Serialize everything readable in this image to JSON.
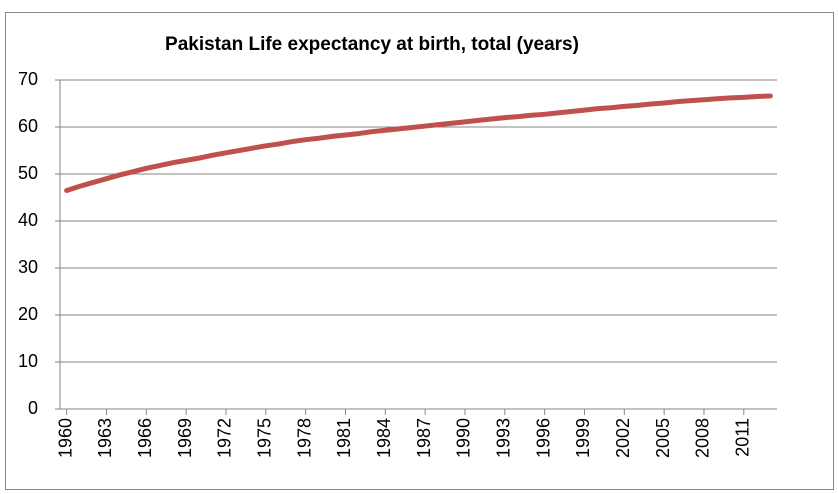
{
  "chart_data": {
    "type": "line",
    "title": "Pakistan Life expectancy at birth, total (years)",
    "x": [
      1960,
      1961,
      1962,
      1963,
      1964,
      1965,
      1966,
      1967,
      1968,
      1969,
      1970,
      1971,
      1972,
      1973,
      1974,
      1975,
      1976,
      1977,
      1978,
      1979,
      1980,
      1981,
      1982,
      1983,
      1984,
      1985,
      1986,
      1987,
      1988,
      1989,
      1990,
      1991,
      1992,
      1993,
      1994,
      1995,
      1996,
      1997,
      1998,
      1999,
      2000,
      2001,
      2002,
      2003,
      2004,
      2005,
      2006,
      2007,
      2008,
      2009,
      2010,
      2011,
      2012,
      2013
    ],
    "series": [
      {
        "name": "Life expectancy",
        "color": "#c0504d",
        "values": [
          46.5,
          47.4,
          48.2,
          49.0,
          49.8,
          50.5,
          51.2,
          51.8,
          52.4,
          52.9,
          53.4,
          54.0,
          54.5,
          55.0,
          55.5,
          56.0,
          56.4,
          56.9,
          57.3,
          57.6,
          58.0,
          58.3,
          58.6,
          59.0,
          59.3,
          59.6,
          59.9,
          60.2,
          60.5,
          60.8,
          61.1,
          61.4,
          61.7,
          62.0,
          62.2,
          62.5,
          62.7,
          63.0,
          63.3,
          63.6,
          63.9,
          64.1,
          64.4,
          64.6,
          64.9,
          65.1,
          65.4,
          65.6,
          65.8,
          66.0,
          66.2,
          66.3,
          66.5,
          66.6
        ]
      }
    ],
    "xlim": [
      1959.5,
      2013.5
    ],
    "xticks": [
      1960,
      1963,
      1966,
      1969,
      1972,
      1975,
      1978,
      1981,
      1984,
      1987,
      1990,
      1993,
      1996,
      1999,
      2002,
      2005,
      2008,
      2011
    ],
    "ylim": [
      0,
      70
    ],
    "yticks": [
      0,
      10,
      20,
      30,
      40,
      50,
      60,
      70
    ],
    "grid": true
  }
}
